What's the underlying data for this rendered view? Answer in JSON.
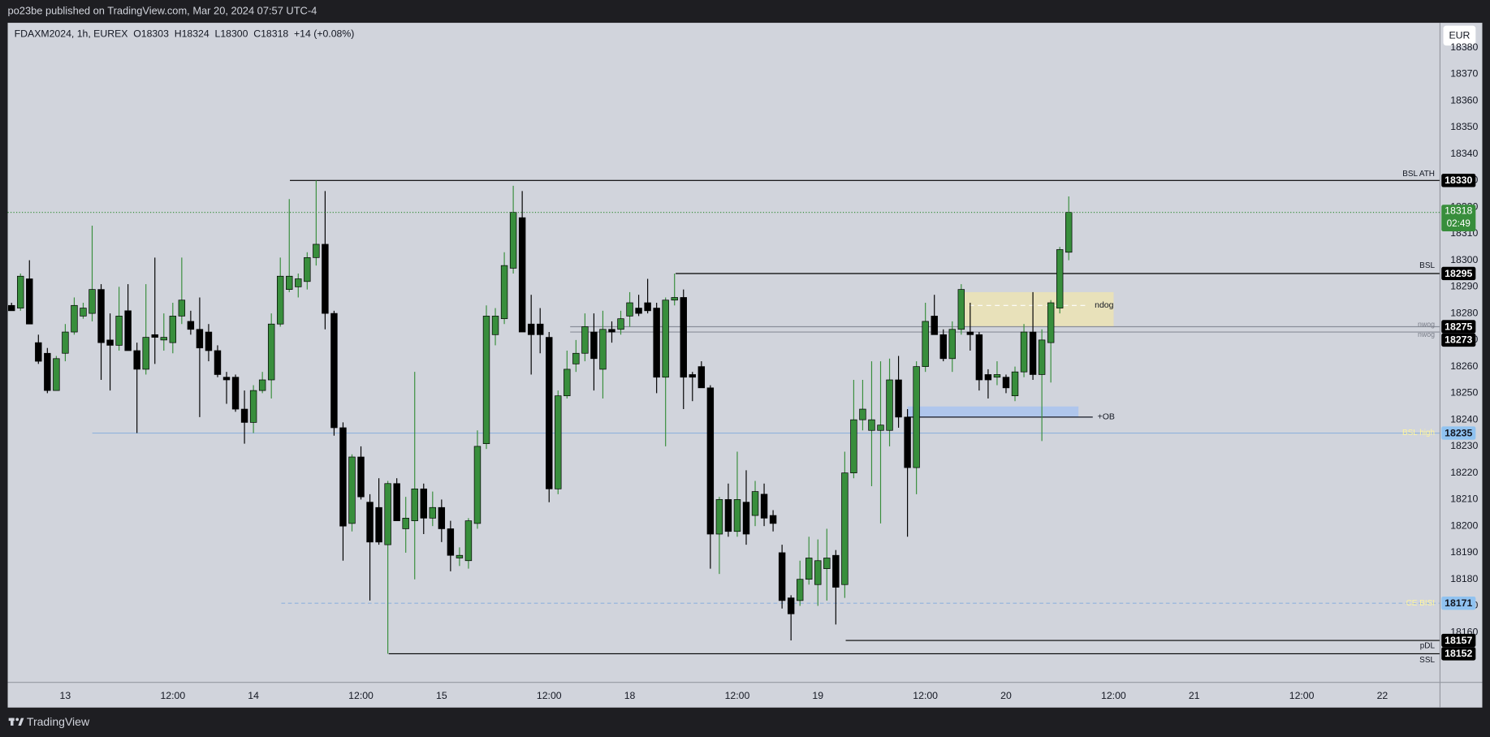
{
  "header": {
    "published": "po23be published on TradingView.com, Mar 20, 2024 07:57 UTC-4",
    "brand": "TradingView"
  },
  "chart_data": {
    "type": "candlestick",
    "legend_text": "FDAXM2024, 1h, EUREX  O18303  H18324  L18300  C18318  +14 (+0.08%)",
    "currency": "EUR",
    "countdown": "02:49",
    "up_color": "#388e3c",
    "down_color": "#000000",
    "grid": false,
    "ylim": [
      18141.4,
      18389.3
    ],
    "yticks": [
      18160,
      18170,
      18180,
      18190,
      18200,
      18210,
      18220,
      18230,
      18240,
      18250,
      18260,
      18270,
      18280,
      18290,
      18300,
      18310,
      18320,
      18330,
      18340,
      18350,
      18360,
      18370,
      18380
    ],
    "categories": [
      null,
      null,
      null,
      null,
      null,
      null,
      "13",
      null,
      null,
      null,
      null,
      null,
      null,
      null,
      null,
      null,
      null,
      null,
      "12:00",
      null,
      null,
      null,
      null,
      null,
      null,
      null,
      null,
      "14",
      null,
      null,
      null,
      null,
      null,
      null,
      null,
      null,
      null,
      null,
      null,
      "12:00",
      null,
      null,
      null,
      null,
      null,
      null,
      null,
      null,
      "15",
      null,
      null,
      null,
      null,
      null,
      null,
      null,
      null,
      null,
      null,
      null,
      "12:00",
      null,
      null,
      null,
      null,
      null,
      null,
      null,
      null,
      "18",
      null,
      null,
      null,
      null,
      null,
      null,
      null,
      null,
      null,
      null,
      null,
      "12:00",
      null,
      null,
      null,
      null,
      null,
      null,
      null,
      null,
      "19",
      null,
      null,
      null,
      null,
      null,
      null,
      null,
      null,
      null,
      null,
      null,
      "12:00",
      null,
      null,
      null,
      null,
      null,
      null,
      null,
      null,
      "20",
      null,
      null,
      null,
      null,
      null,
      null,
      null,
      null,
      null,
      null,
      null,
      "12:00",
      null,
      null,
      null,
      null,
      null,
      null,
      null,
      null,
      "21",
      null,
      null,
      null,
      null,
      null,
      null,
      null,
      null,
      null,
      null,
      null,
      "12:00",
      null,
      null,
      null,
      null,
      null,
      null,
      null,
      null,
      "22",
      null,
      null,
      null,
      null,
      null,
      null
    ],
    "open": [
      18283,
      18282,
      18293,
      18269,
      18265,
      18251,
      18265,
      18273,
      18279,
      18280,
      18289,
      18270,
      18268,
      18281,
      18266,
      18259,
      18272,
      18270,
      18269,
      18279,
      18277,
      18274,
      18273,
      18266,
      18256,
      18256,
      18244,
      18239,
      18251,
      18255,
      18276,
      18289,
      18290,
      18292,
      18301,
      18306,
      18280,
      18237,
      18201,
      18226,
      18209,
      18207,
      18193,
      18216,
      18199,
      18202,
      18214,
      18203,
      18207,
      18199,
      18188,
      18187,
      18201,
      18231,
      18272,
      18278,
      18297,
      18316,
      18276,
      18276,
      18271,
      18214,
      18249,
      18261,
      18265,
      18273,
      18259,
      18274,
      18274,
      18279,
      18282,
      18284,
      18282,
      18256,
      18285,
      18286,
      18257,
      18260,
      18252,
      18197,
      18210,
      18198,
      18209,
      18204,
      18212,
      18204,
      18190,
      18173,
      18172,
      18180,
      18178,
      18184,
      18189,
      18178,
      18220,
      18240,
      18236,
      18236,
      18236,
      18255,
      18241,
      18222,
      18260,
      18279,
      18272,
      18263,
      18274,
      18273,
      18272,
      18257,
      18256,
      18256,
      18249,
      18258,
      18273,
      18257,
      18269,
      18282,
      18303,
      null,
      null,
      null,
      null,
      null,
      null,
      null,
      null,
      null,
      null,
      null,
      null,
      null,
      null,
      null,
      null,
      null,
      null,
      null,
      null,
      null,
      null,
      null,
      null,
      null,
      null,
      null,
      null,
      null,
      null,
      null,
      null,
      null,
      null,
      null,
      null,
      null,
      null,
      null,
      null,
      null
    ],
    "high": [
      18284,
      18295,
      18300,
      18272,
      18267,
      18264,
      18276,
      18286,
      18284,
      18313,
      18291,
      18280,
      18290,
      18291,
      18269,
      18291,
      18301,
      18280,
      18284,
      18301,
      18281,
      18286,
      18276,
      18268,
      18258,
      18257,
      18251,
      18253,
      18258,
      18280,
      18301,
      18323,
      18295,
      18303,
      18330,
      18326,
      18281,
      18239,
      18227,
      18230,
      18212,
      18218,
      18217,
      18218,
      18211,
      18258,
      18216,
      18213,
      18210,
      18202,
      18192,
      18203,
      18236,
      18283,
      18282,
      18303,
      18328,
      18326,
      18287,
      18282,
      18273,
      18251,
      18266,
      18270,
      18280,
      18280,
      18281,
      18277,
      18281,
      18288,
      18287,
      18293,
      18284,
      18286,
      18295,
      18289,
      18258,
      18262,
      18253,
      18211,
      18216,
      18228,
      18221,
      18217,
      18216,
      18206,
      18193,
      18174,
      18187,
      18196,
      18195,
      18199,
      18191,
      18228,
      18255,
      18255,
      18262,
      18262,
      18263,
      18264,
      18244,
      18262,
      18284,
      18287,
      18274,
      18277,
      18291,
      18284,
      18273,
      18259,
      18262,
      18257,
      18260,
      18276,
      18288,
      18274,
      18285,
      18305,
      18324,
      null,
      null,
      null,
      null,
      null,
      null,
      null,
      null,
      null,
      null,
      null,
      null,
      null,
      null,
      null,
      null,
      null,
      null,
      null,
      null,
      null,
      null,
      null,
      null,
      null,
      null,
      null,
      null,
      null,
      null,
      null,
      null,
      null,
      null,
      null,
      null,
      null,
      null,
      null,
      null,
      null
    ],
    "low": [
      18281,
      18281,
      18278,
      18261,
      18250,
      18251,
      18262,
      18272,
      18278,
      18277,
      18255,
      18251,
      18266,
      18266,
      18235,
      18257,
      18261,
      18266,
      18265,
      18276,
      18272,
      18241,
      18262,
      18256,
      18246,
      18243,
      18231,
      18235,
      18250,
      18248,
      18275,
      18288,
      18286,
      18289,
      18298,
      18274,
      18234,
      18187,
      18198,
      18210,
      18172,
      18193,
      18152,
      18202,
      18190,
      18180,
      18197,
      18200,
      18194,
      18183,
      18185,
      18184,
      18199,
      18229,
      18268,
      18276,
      18295,
      18273,
      18257,
      18265,
      18209,
      18212,
      18248,
      18258,
      18262,
      18251,
      18248,
      18269,
      18272,
      18275,
      18279,
      18280,
      18250,
      18230,
      18283,
      18244,
      18247,
      18252,
      18184,
      18182,
      18196,
      18196,
      18193,
      18200,
      18200,
      18198,
      18169,
      18157,
      18170,
      18178,
      18170,
      18172,
      18163,
      18173,
      18218,
      18236,
      18215,
      18201,
      18230,
      18237,
      18196,
      18212,
      18258,
      18272,
      18262,
      18258,
      18272,
      18266,
      18251,
      18248,
      18253,
      18250,
      18247,
      18256,
      18255,
      18232,
      18254,
      18280,
      18300,
      null,
      null,
      null,
      null,
      null,
      null,
      null,
      null,
      null,
      null,
      null,
      null,
      null,
      null,
      null,
      null,
      null,
      null,
      null,
      null,
      null,
      null,
      null,
      null,
      null,
      null,
      null,
      null,
      null,
      null,
      null,
      null,
      null,
      null,
      null,
      null,
      null,
      null,
      null,
      null,
      null
    ],
    "close": [
      18281,
      18294,
      18276,
      18262,
      18251,
      18263,
      18273,
      18283,
      18282,
      18289,
      18269,
      18268,
      18279,
      18266,
      18259,
      18271,
      18271,
      18271,
      18279,
      18285,
      18274,
      18267,
      18266,
      18257,
      18255,
      18244,
      18239,
      18251,
      18255,
      18276,
      18294,
      18294,
      18293,
      18301,
      18306,
      18280,
      18237,
      18200,
      18226,
      18211,
      18194,
      18194,
      18216,
      18202,
      18203,
      18214,
      18203,
      18207,
      18199,
      18189,
      18189,
      18202,
      18230,
      18279,
      18279,
      18298,
      18318,
      18273,
      18272,
      18272,
      18214,
      18249,
      18259,
      18265,
      18275,
      18263,
      18274,
      18273,
      18278,
      18284,
      18280,
      18281,
      18256,
      18285,
      18286,
      18256,
      18256,
      18252,
      18197,
      18210,
      18198,
      18210,
      18197,
      18213,
      18203,
      18201,
      18172,
      18167,
      18180,
      18188,
      18187,
      18188,
      18177,
      18220,
      18240,
      18244,
      18240,
      18238,
      18255,
      18241,
      18222,
      18260,
      18277,
      18272,
      18263,
      18274,
      18289,
      18272,
      18255,
      18255,
      18257,
      18252,
      18258,
      18273,
      18257,
      18270,
      18284,
      18304,
      18318,
      null,
      null,
      null,
      null,
      null,
      null,
      null,
      null,
      null,
      null,
      null,
      null,
      null,
      null,
      null,
      null,
      null,
      null,
      null,
      null,
      null,
      null,
      null,
      null,
      null,
      null,
      null,
      null,
      null,
      null,
      null,
      null,
      null,
      null,
      null,
      null,
      null,
      null,
      null,
      null,
      null
    ],
    "levels": [
      {
        "label": "BSL ATH",
        "value": 18330,
        "color": "#000000",
        "label_color": "#131722",
        "tag_color": "#000000",
        "tag_text_color": "#ffffff"
      },
      {
        "label": "BSL",
        "value": 18295,
        "color": "#000000",
        "label_color": "#131722",
        "tag_color": "#000000",
        "tag_text_color": "#ffffff"
      },
      {
        "label": "nwog",
        "value": 18275,
        "color": "#8a8e99",
        "label_color": "#7a7e89",
        "tag_color": "#000000",
        "tag_text_color": "#ffffff"
      },
      {
        "label": "nwog",
        "value": 18273,
        "color": "#8a8e99",
        "label_color": "#7a7e89",
        "tag_color": "#000000",
        "tag_text_color": "#ffffff"
      },
      {
        "label": "BSL high",
        "value": 18235,
        "color": "#8fb2dd",
        "label_color": "#fff59d",
        "tag_color": "#90c2f0",
        "tag_text_color": "#131722"
      },
      {
        "label": "CE BISI",
        "value": 18171,
        "color": "#8fb2dd",
        "style": "dashed",
        "label_color": "#fff59d",
        "tag_color": "#90c2f0",
        "tag_text_color": "#131722"
      },
      {
        "label": "pDL",
        "value": 18157,
        "color": "#000000",
        "label_color": "#131722",
        "tag_color": "#000000",
        "tag_text_color": "#ffffff"
      },
      {
        "label": "SSL",
        "value": 18152,
        "color": "#000000",
        "label_color": "#131722",
        "tag_color": "#000000",
        "tag_text_color": "#ffffff"
      }
    ],
    "zones": [
      {
        "label": "ndog",
        "top": 18288,
        "bottom": 18275,
        "mid": 18283,
        "color": "#ece3b4"
      },
      {
        "label": "+OB",
        "top": 18245,
        "bottom": 18241,
        "color": "#a9c3ee"
      }
    ]
  }
}
